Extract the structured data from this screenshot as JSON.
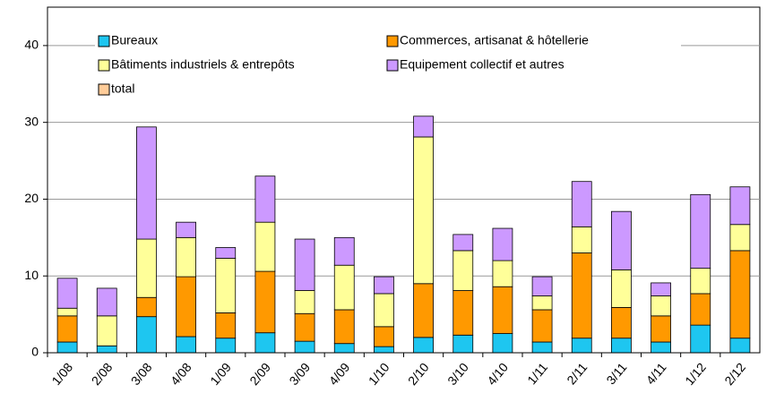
{
  "chart_data": {
    "type": "stacked_bar",
    "categories": [
      "1/08",
      "2/08",
      "3/08",
      "4/08",
      "1/09",
      "2/09",
      "3/09",
      "4/09",
      "1/10",
      "2/10",
      "3/10",
      "4/10",
      "1/11",
      "2/11",
      "3/11",
      "4/11",
      "1/12",
      "2/12"
    ],
    "series": [
      {
        "name": "Bureaux",
        "color": "#1ec6f0",
        "values": [
          1.4,
          0.9,
          4.7,
          2.1,
          1.9,
          2.6,
          1.5,
          1.2,
          0.8,
          2.0,
          2.3,
          2.5,
          1.4,
          1.9,
          1.9,
          1.4,
          3.6,
          1.9
        ]
      },
      {
        "name": "Commerces, artisanat & hôtellerie",
        "color": "#ff9900",
        "values": [
          3.4,
          0,
          2.5,
          7.8,
          3.3,
          8.0,
          3.6,
          4.4,
          2.6,
          7.0,
          5.8,
          6.1,
          4.2,
          11.1,
          4.0,
          3.4,
          4.1,
          11.4
        ]
      },
      {
        "name": "Bâtiments industriels & entrepôts",
        "color": "#ffff99",
        "values": [
          1.0,
          3.9,
          7.6,
          5.1,
          7.1,
          6.4,
          3.0,
          5.8,
          4.3,
          19.1,
          5.2,
          3.4,
          1.8,
          3.4,
          4.9,
          2.6,
          3.3,
          3.4
        ]
      },
      {
        "name": "Equipement collectif et autres",
        "color": "#cc99ff",
        "values": [
          3.9,
          3.6,
          14.6,
          2.0,
          1.4,
          6.0,
          6.7,
          3.6,
          2.2,
          2.7,
          2.1,
          4.2,
          2.5,
          5.9,
          7.6,
          1.7,
          9.6,
          4.9
        ]
      },
      {
        "name": "total",
        "color": "#ffcc99",
        "values": [
          null,
          null,
          null,
          null,
          null,
          null,
          null,
          null,
          null,
          null,
          null,
          null,
          null,
          null,
          null,
          null,
          null,
          null
        ]
      }
    ],
    "ylim": [
      0,
      45
    ],
    "yticks": [
      0,
      10,
      20,
      30,
      40
    ],
    "grid": true,
    "legend": "top-left"
  }
}
